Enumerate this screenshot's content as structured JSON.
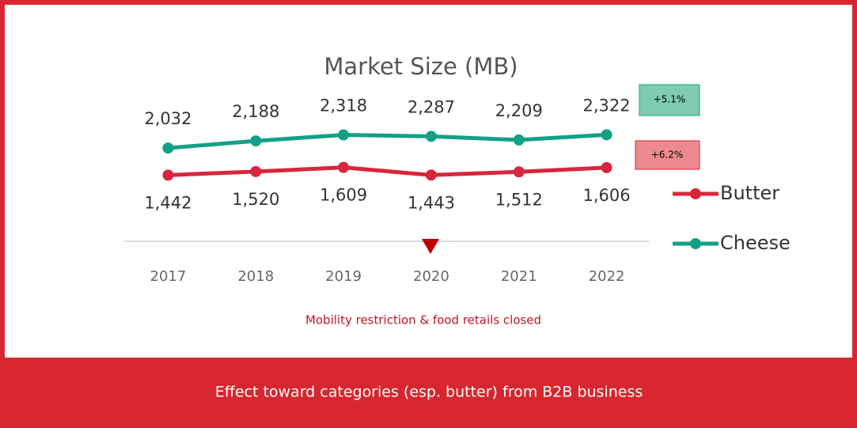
{
  "chart_data": {
    "type": "line",
    "title": "Market Size (MB)",
    "categories": [
      "2017",
      "2018",
      "2019",
      "2020",
      "2021",
      "2022"
    ],
    "series": [
      {
        "name": "Butter",
        "color": "#d7263d",
        "values": [
          1442,
          1520,
          1609,
          1443,
          1512,
          1606
        ],
        "value_labels": [
          "1,442",
          "1,520",
          "1,609",
          "1,443",
          "1,512",
          "1,606"
        ]
      },
      {
        "name": "Cheese",
        "color": "#13a086",
        "values": [
          2032,
          2188,
          2318,
          2287,
          2209,
          2322
        ],
        "value_labels": [
          "2,032",
          "2,188",
          "2,318",
          "2,287",
          "2,209",
          "2,322"
        ]
      }
    ],
    "ylim": [
      0,
      2500
    ],
    "legend": "right",
    "annotations": [
      "+5.1%",
      "+6.2%",
      "Mobility restriction & food retails closed"
    ],
    "footer": "Effect toward categories (esp. butter) from B2B business"
  }
}
